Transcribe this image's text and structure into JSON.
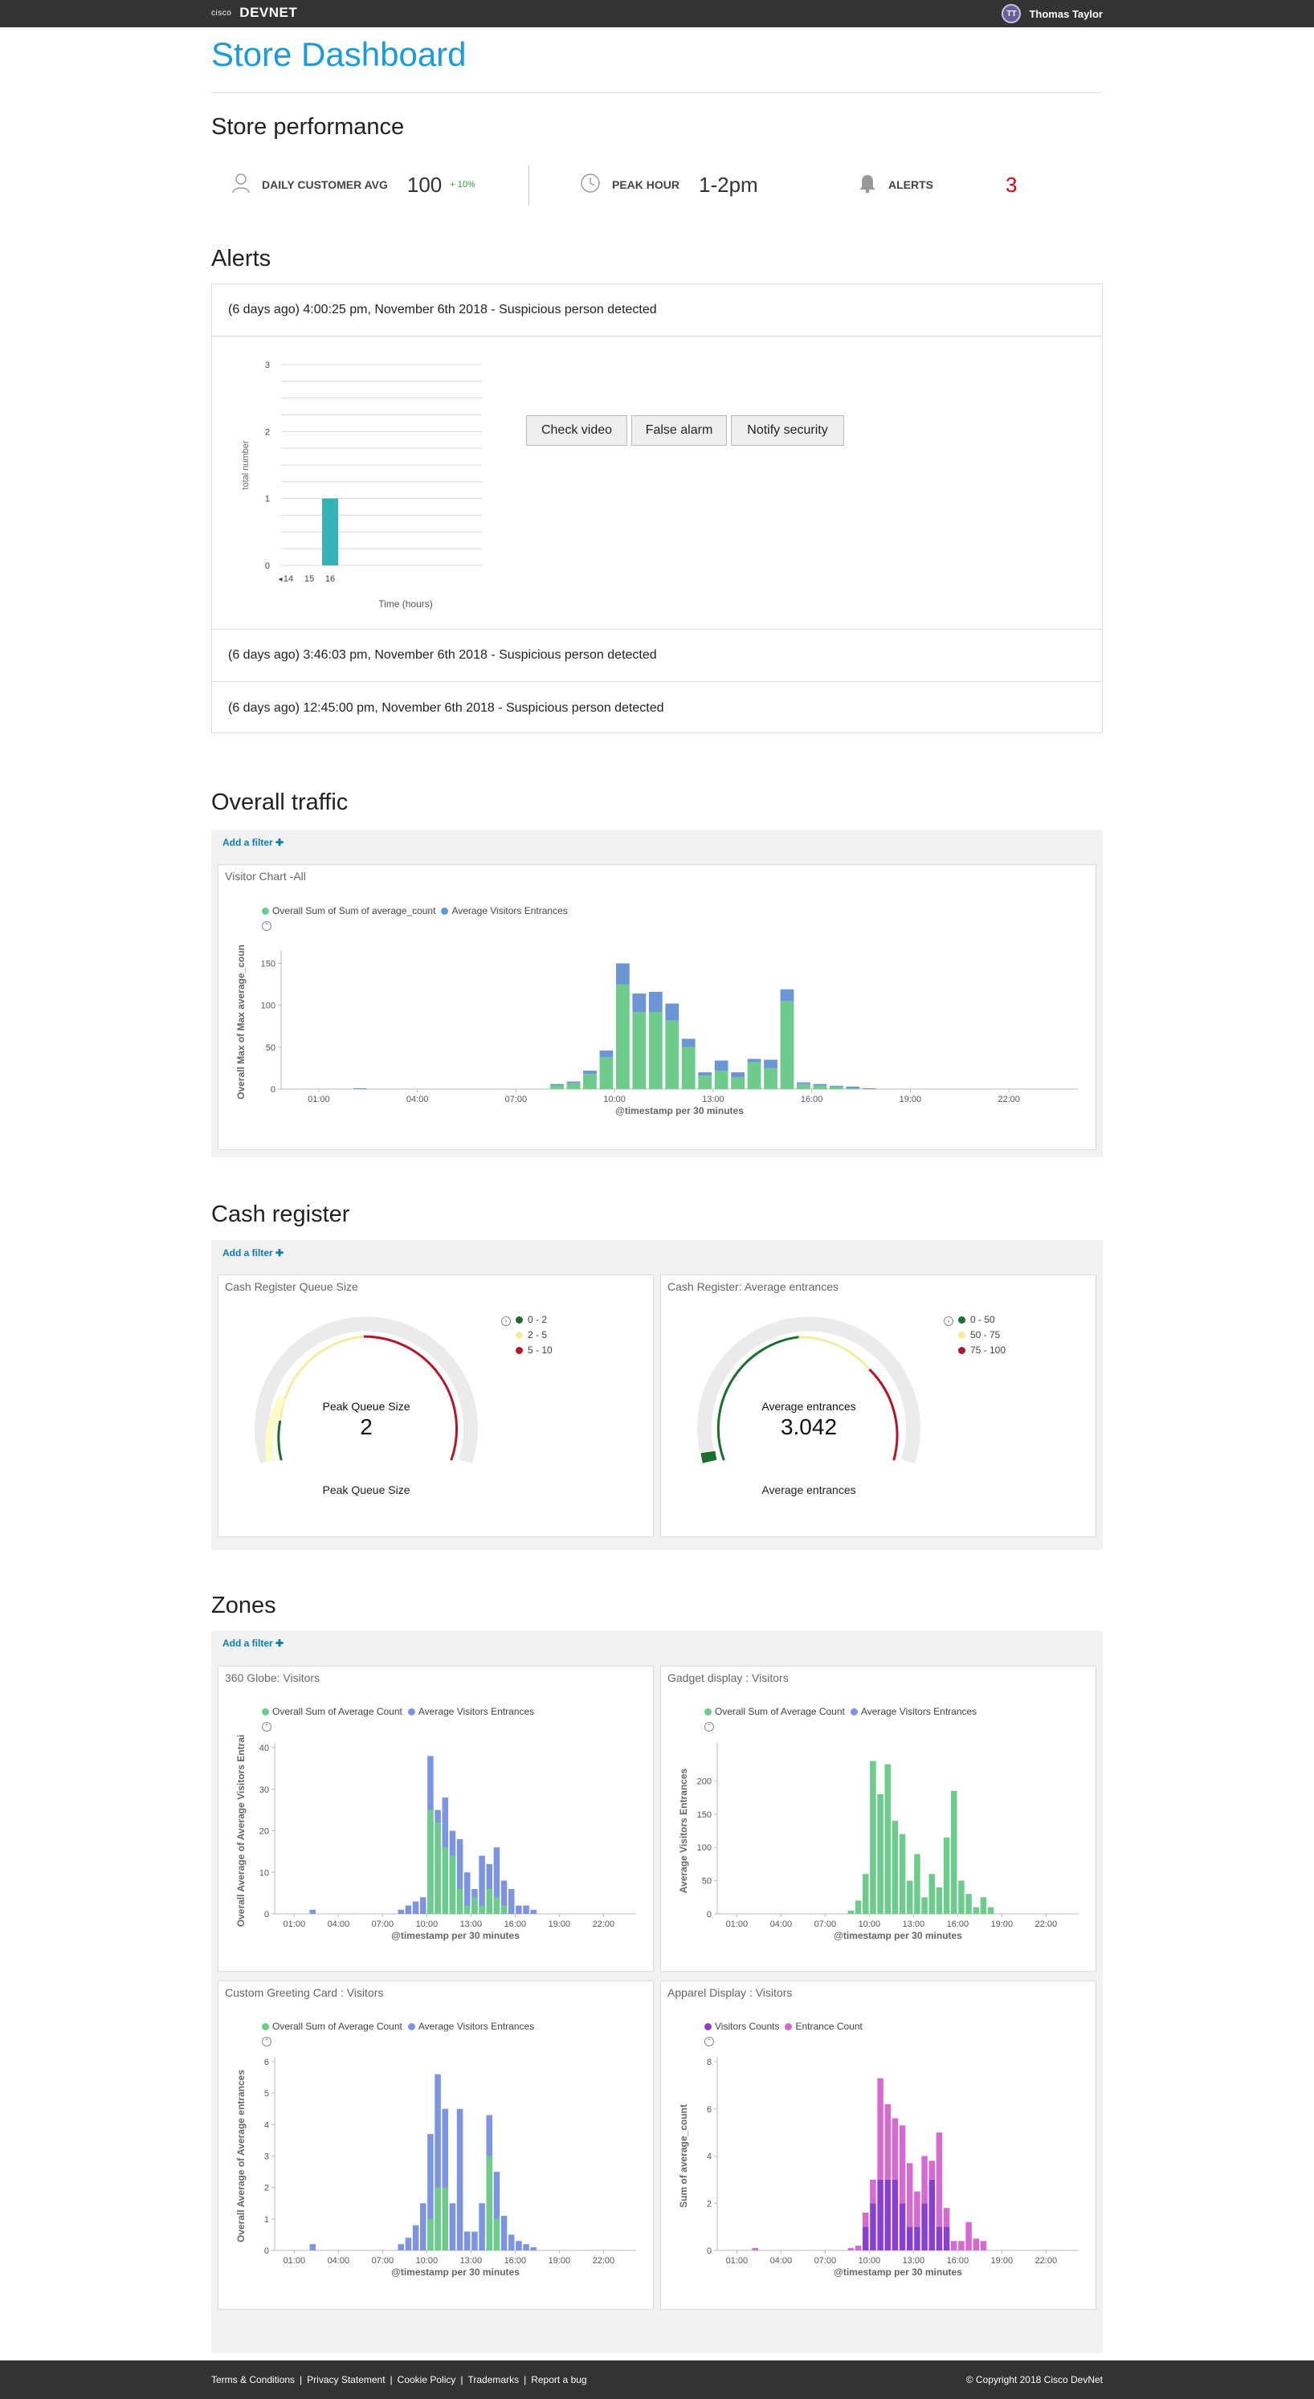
{
  "header": {
    "cisco_label": "cisco",
    "brand": "DEVNET",
    "user_initials": "TT",
    "user_name": "Thomas Taylor"
  },
  "page_title": "Store Dashboard",
  "performance": {
    "title": "Store performance",
    "daily_label": "DAILY CUSTOMER AVG",
    "daily_value": "100",
    "daily_delta": "+ 10%",
    "peak_label": "PEAK HOUR",
    "peak_value": "1-2pm",
    "alerts_label": "ALERTS",
    "alerts_value": "3",
    "icons": [
      "user-icon",
      "clock-icon",
      "bell-icon"
    ]
  },
  "alerts": {
    "title": "Alerts",
    "items": [
      "(6 days ago) 4:00:25 pm, November 6th 2018 - Suspicious person detected",
      "(6 days ago) 3:46:03 pm, November 6th 2018 - Suspicious person detected",
      "(6 days ago) 12:45:00 pm, November 6th 2018 - Suspicious person detected"
    ],
    "buttons": [
      "Check video",
      "False alarm",
      "Notify security"
    ]
  },
  "alert_chart": {
    "type": "bar",
    "ylabel": "total number",
    "xlabel": "Time (hours)",
    "yticks": [
      "0",
      "1",
      "2",
      "3"
    ],
    "ylim": [
      0,
      3
    ],
    "categories": [
      "14",
      "15",
      "16"
    ],
    "values": [
      0,
      0,
      1
    ],
    "color": "#36b3b7"
  },
  "traffic": {
    "title": "Overall traffic",
    "filter": "Add a filter",
    "chart_title": "Visitor Chart -All"
  },
  "cash": {
    "title": "Cash register",
    "filter": "Add a filter",
    "queue": {
      "title": "Cash Register Queue Size",
      "center_label": "Peak Queue Size",
      "value": "2",
      "bottom_label": "Peak Queue Size",
      "legend": [
        "0 - 2",
        "2 - 5",
        "5 - 10"
      ]
    },
    "entrances": {
      "title": "Cash Register: Average entrances",
      "center_label": "Average entrances",
      "value": "3.042",
      "bottom_label": "Average entrances",
      "legend": [
        "0 - 50",
        "50 - 75",
        "75 - 100"
      ]
    }
  },
  "zones": {
    "title": "Zones",
    "filter": "Add a filter"
  },
  "footer": {
    "links": [
      "Terms & Conditions",
      "Privacy Statement",
      "Cookie Policy",
      "Trademarks",
      "Report a bug"
    ],
    "copyright": "© Copyright 2018 Cisco DevNet"
  },
  "chart_data": [
    {
      "id": "traffic",
      "type": "bar",
      "stacked": true,
      "xlabel": "@timestamp per 30 minutes",
      "ylabel": "Overall Max of Max average_coun",
      "ylim": [
        0,
        160
      ],
      "yticks": [
        0,
        50,
        100,
        150
      ],
      "xticks": [
        "01:00",
        "04:00",
        "07:00",
        "10:00",
        "13:00",
        "16:00",
        "19:00",
        "22:00"
      ],
      "legend": [
        "Overall Sum of Sum of average_count",
        "Average Visitors Entrances"
      ],
      "colors": [
        "#6dcc8b",
        "#6b95d4"
      ],
      "series": [
        {
          "name": "Overall Sum of Sum of average_count",
          "values": [
            0,
            0,
            0,
            0,
            0,
            0,
            0,
            0,
            0,
            0,
            0,
            0,
            0,
            0,
            0,
            0,
            0,
            0,
            0,
            0,
            0,
            0,
            0,
            0,
            0,
            0,
            0,
            0,
            0,
            0,
            0,
            0,
            4,
            7,
            18,
            38,
            125,
            92,
            92,
            82,
            50,
            16,
            22,
            14,
            32,
            25,
            105,
            6,
            4,
            3,
            1,
            0,
            0,
            0,
            0,
            0,
            0,
            0,
            0,
            0,
            0,
            0,
            0,
            0,
            0,
            0,
            0,
            0,
            0,
            0,
            0
          ]
        },
        {
          "name": "Average Visitors Entrances",
          "values": [
            0,
            0,
            0,
            0,
            0,
            0,
            0,
            0,
            0,
            0,
            0,
            0,
            0,
            0,
            0,
            0,
            0,
            0,
            0,
            0,
            1,
            0,
            0,
            0,
            0,
            0,
            0,
            0,
            0,
            0,
            0,
            0,
            2,
            2,
            4,
            8,
            25,
            22,
            24,
            20,
            10,
            4,
            12,
            6,
            4,
            10,
            14,
            2,
            2,
            1,
            2,
            1,
            0,
            0,
            0,
            0,
            0,
            0,
            0,
            0,
            0,
            0,
            0,
            0,
            0,
            0,
            0,
            0,
            0,
            0,
            0
          ]
        }
      ]
    },
    {
      "id": "globe",
      "type": "bar",
      "title": "360 Globe: Visitors",
      "stacked": false,
      "xlabel": "@timestamp per 30 minutes",
      "ylabel": "Overall Average of Average Visitors Entrai",
      "ylim": [
        0,
        40
      ],
      "yticks": [
        0,
        10,
        20,
        30,
        40
      ],
      "xticks": [
        "01:00",
        "04:00",
        "07:00",
        "10:00",
        "13:00",
        "16:00",
        "19:00",
        "22:00"
      ],
      "legend": [
        "Overall Sum of Average Count",
        "Average Visitors Entrances"
      ],
      "colors": [
        "#6dcc8b",
        "#7d94e0"
      ],
      "series": [
        {
          "name": "Overall Sum of Average Count",
          "values": [
            0,
            0,
            0,
            0,
            0,
            0,
            0,
            0,
            0,
            0,
            0,
            0,
            0,
            0,
            0,
            0,
            0,
            0,
            0,
            0,
            0,
            0,
            0,
            0,
            0,
            0,
            0,
            0,
            0,
            0,
            0,
            0,
            0,
            0,
            0,
            0,
            25,
            22,
            16,
            14,
            6,
            2,
            4,
            2,
            6,
            4,
            2,
            0,
            0,
            0,
            0,
            0,
            0,
            0,
            0,
            0,
            0,
            0,
            0,
            0,
            0,
            0,
            0,
            0,
            0,
            0,
            0,
            0,
            0,
            0,
            0
          ]
        },
        {
          "name": "Average Visitors Entrances",
          "values": [
            0,
            0,
            0,
            0,
            0,
            0,
            0,
            0,
            0,
            0,
            0,
            0,
            0,
            0,
            0,
            0,
            0,
            0,
            0,
            0,
            1,
            0,
            0,
            0,
            0,
            0,
            0,
            0,
            0,
            0,
            0,
            0,
            1,
            2,
            3,
            4,
            38,
            25,
            28,
            20,
            18,
            10,
            6,
            14,
            12,
            16,
            8,
            6,
            2,
            2,
            1,
            0,
            0,
            0,
            0,
            0,
            0,
            0,
            0,
            0,
            0,
            0,
            0,
            0,
            0,
            0,
            0,
            0,
            0,
            0,
            0
          ]
        }
      ]
    },
    {
      "id": "gadget",
      "type": "bar",
      "title": "Gadget display : Visitors",
      "stacked": false,
      "xlabel": "@timestamp per 30 minutes",
      "ylabel": "Average Visitors Entrances",
      "ylim": [
        0,
        250
      ],
      "yticks": [
        0,
        50,
        100,
        150,
        200
      ],
      "xticks": [
        "01:00",
        "04:00",
        "07:00",
        "10:00",
        "13:00",
        "16:00",
        "19:00",
        "22:00"
      ],
      "legend": [
        "Overall Sum of Average Count",
        "Average Visitors Entrances"
      ],
      "colors": [
        "#6dcc8b",
        "#7d94e0"
      ],
      "series": [
        {
          "name": "Overall Sum of Average Count",
          "values": [
            0,
            0,
            0,
            0,
            0,
            0,
            0,
            0,
            0,
            0,
            0,
            0,
            0,
            0,
            0,
            0,
            0,
            0,
            0,
            0,
            0,
            0,
            0,
            0,
            0,
            0,
            0,
            0,
            0,
            0,
            0,
            0,
            0,
            5,
            20,
            60,
            230,
            180,
            225,
            140,
            120,
            50,
            90,
            25,
            60,
            40,
            115,
            185,
            50,
            30,
            10,
            25,
            10,
            0,
            0,
            0,
            0,
            0,
            0,
            0,
            0,
            0,
            0,
            0,
            0,
            0,
            0,
            0,
            0,
            0,
            0
          ]
        },
        {
          "name": "Average Visitors Entrances",
          "values": [
            0,
            0,
            0,
            0,
            0,
            0,
            0,
            0,
            0,
            0,
            0,
            0,
            0,
            0,
            0,
            0,
            0,
            0,
            0,
            0,
            0,
            0,
            0,
            0,
            0,
            0,
            0,
            0,
            0,
            0,
            0,
            0,
            0,
            0,
            0,
            0,
            0,
            0,
            0,
            0,
            0,
            0,
            0,
            0,
            0,
            0,
            0,
            0,
            0,
            0,
            0,
            0,
            0,
            0,
            0,
            0,
            0,
            0,
            0,
            0,
            0,
            0,
            0,
            0,
            0,
            0,
            0,
            0,
            0,
            0,
            0
          ]
        }
      ]
    },
    {
      "id": "greeting",
      "type": "bar",
      "title": "Custom Greeting Card : Visitors",
      "stacked": false,
      "xlabel": "@timestamp per 30 minutes",
      "ylabel": "Overall Average of Average entrances",
      "ylim": [
        0,
        6
      ],
      "yticks": [
        0,
        1,
        2,
        3,
        4,
        5,
        6
      ],
      "xticks": [
        "01:00",
        "04:00",
        "07:00",
        "10:00",
        "13:00",
        "16:00",
        "19:00",
        "22:00"
      ],
      "legend": [
        "Overall Sum of Average Count",
        "Average Visitors Entrances"
      ],
      "colors": [
        "#6dcc8b",
        "#7d94e0"
      ],
      "series": [
        {
          "name": "Overall Sum of Average Count",
          "values": [
            0,
            0,
            0,
            0,
            0,
            0,
            0,
            0,
            0,
            0,
            0,
            0,
            0,
            0,
            0,
            0,
            0,
            0,
            0,
            0,
            0,
            0,
            0,
            0,
            0,
            0,
            0,
            0,
            0,
            0,
            0,
            0,
            0,
            0,
            0,
            0,
            1,
            2,
            2,
            0,
            0,
            0,
            0,
            0,
            3,
            1,
            0,
            0,
            0,
            0,
            0,
            0,
            0,
            0,
            0,
            0,
            0,
            0,
            0,
            0,
            0,
            0,
            0,
            0,
            0,
            0,
            0,
            0,
            0,
            0,
            0
          ]
        },
        {
          "name": "Average Visitors Entrances",
          "values": [
            0,
            0,
            0,
            0,
            0,
            0,
            0,
            0,
            0,
            0,
            0,
            0,
            0,
            0,
            0,
            0,
            0,
            0,
            0,
            0,
            0.2,
            0,
            0,
            0,
            0,
            0,
            0,
            0,
            0,
            0,
            0,
            0,
            0.2,
            0.4,
            0.8,
            1.5,
            3.7,
            5.6,
            4.5,
            1.5,
            4.5,
            0.6,
            0.6,
            1.5,
            4.3,
            2.5,
            1.1,
            0.5,
            0.3,
            0.2,
            0.1,
            0,
            0,
            0,
            0,
            0,
            0,
            0,
            0,
            0,
            0,
            0,
            0,
            0,
            0,
            0,
            0,
            0,
            0,
            0,
            0
          ]
        }
      ]
    },
    {
      "id": "apparel",
      "type": "bar",
      "title": "Apparel Display : Visitors",
      "stacked": true,
      "xlabel": "@timestamp per 30 minutes",
      "ylabel": "Sum of average_count",
      "ylim": [
        0,
        8
      ],
      "yticks": [
        0,
        2,
        4,
        6,
        8
      ],
      "xticks": [
        "01:00",
        "04:00",
        "07:00",
        "10:00",
        "13:00",
        "16:00",
        "19:00",
        "22:00"
      ],
      "legend": [
        "Visitors Counts",
        "Entrance Count"
      ],
      "colors": [
        "#8a3fd1",
        "#d56bd0"
      ],
      "series": [
        {
          "name": "Visitors Counts",
          "values": [
            0,
            0,
            0,
            0,
            0,
            0,
            0,
            0,
            0,
            0,
            0,
            0,
            0,
            0,
            0,
            0,
            0,
            0,
            0,
            0,
            0,
            0,
            0,
            0,
            0,
            0,
            0,
            0,
            0,
            0,
            0,
            0,
            0,
            0,
            0,
            1,
            2,
            3,
            3,
            3,
            2,
            1,
            1,
            2,
            3,
            1,
            1,
            0,
            0,
            0,
            0,
            0,
            0,
            0,
            0,
            0,
            0,
            0,
            0,
            0,
            0,
            0,
            0,
            0,
            0,
            0,
            0,
            0,
            0,
            0,
            0
          ]
        },
        {
          "name": "Entrance Count",
          "values": [
            0,
            0,
            0,
            0,
            0,
            0,
            0,
            0,
            0,
            0,
            0,
            0,
            0,
            0,
            0,
            0,
            0,
            0,
            0,
            0,
            0.1,
            0,
            0,
            0,
            0,
            0,
            0,
            0,
            0,
            0,
            0,
            0,
            0,
            0.1,
            0.2,
            0.6,
            1,
            4.3,
            3.2,
            2.6,
            3.3,
            2.7,
            1.5,
            2,
            0.8,
            4,
            0.8,
            0.4,
            0.4,
            1.2,
            0.5,
            0.4,
            0,
            0,
            0,
            0,
            0,
            0,
            0,
            0,
            0,
            0,
            0,
            0,
            0,
            0,
            0,
            0,
            0,
            0,
            0
          ]
        }
      ]
    }
  ]
}
